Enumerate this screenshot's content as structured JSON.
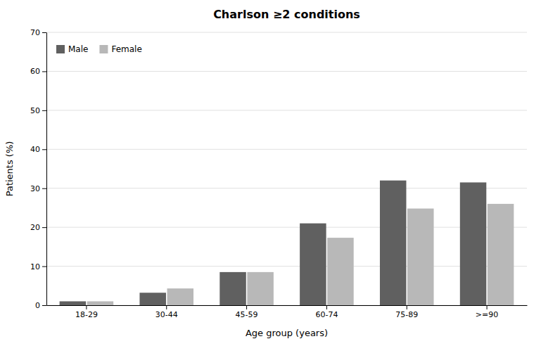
{
  "chart_data": {
    "type": "bar",
    "title": "Charlson ≥2 conditions",
    "xlabel": "Age group (years)",
    "ylabel": "Patients (%)",
    "categories": [
      "18-29",
      "30-44",
      "45-59",
      "60-74",
      "75-89",
      ">=90"
    ],
    "series": [
      {
        "name": "Male",
        "color": "#606060",
        "values": [
          1.0,
          3.2,
          8.5,
          21.0,
          32.0,
          31.5
        ]
      },
      {
        "name": "Female",
        "color": "#b8b8b8",
        "values": [
          1.0,
          4.3,
          8.5,
          17.3,
          24.8,
          26.0
        ]
      }
    ],
    "ylim": [
      0,
      70
    ],
    "yticks": [
      0,
      10,
      20,
      30,
      40,
      50,
      60,
      70
    ],
    "grid": true,
    "legend": "upper left"
  }
}
